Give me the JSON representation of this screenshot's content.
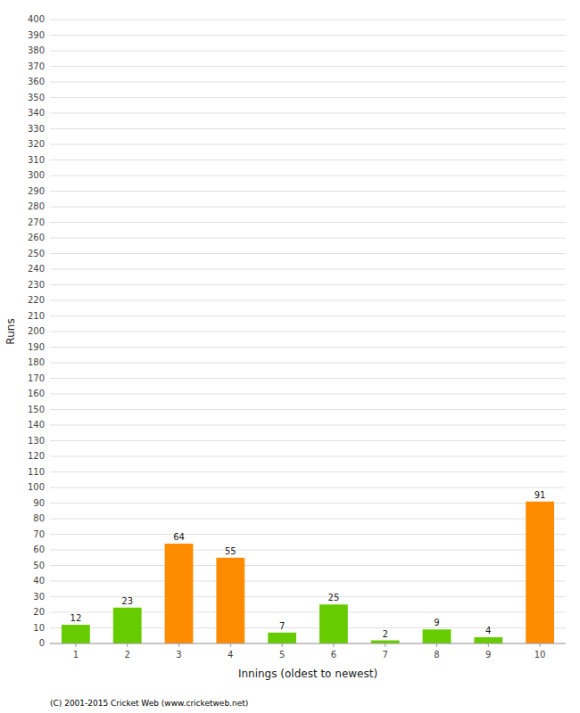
{
  "chart_data": {
    "type": "bar",
    "categories": [
      1,
      2,
      3,
      4,
      5,
      6,
      7,
      8,
      9,
      10
    ],
    "values": [
      12,
      23,
      64,
      55,
      7,
      25,
      2,
      9,
      4,
      91
    ],
    "colors": [
      "#66cc00",
      "#66cc00",
      "#ff8c00",
      "#ff8c00",
      "#66cc00",
      "#66cc00",
      "#66cc00",
      "#66cc00",
      "#66cc00",
      "#ff8c00"
    ],
    "x_label": "Innings (oldest to newest)",
    "y_label": "Runs",
    "ylim": [
      0,
      400
    ],
    "yticks": [
      0,
      10,
      20,
      30,
      40,
      50,
      60,
      70,
      80,
      90,
      100,
      110,
      120,
      130,
      140,
      150,
      160,
      170,
      180,
      190,
      200,
      210,
      220,
      230,
      240,
      250,
      260,
      270,
      280,
      290,
      300,
      310,
      320,
      330,
      340,
      350,
      360,
      370,
      380,
      390,
      400
    ],
    "grid": true,
    "data_labels": true,
    "annotations": [
      "(C) 2001-2015 Cricket Web (www.cricketweb.net)"
    ]
  }
}
